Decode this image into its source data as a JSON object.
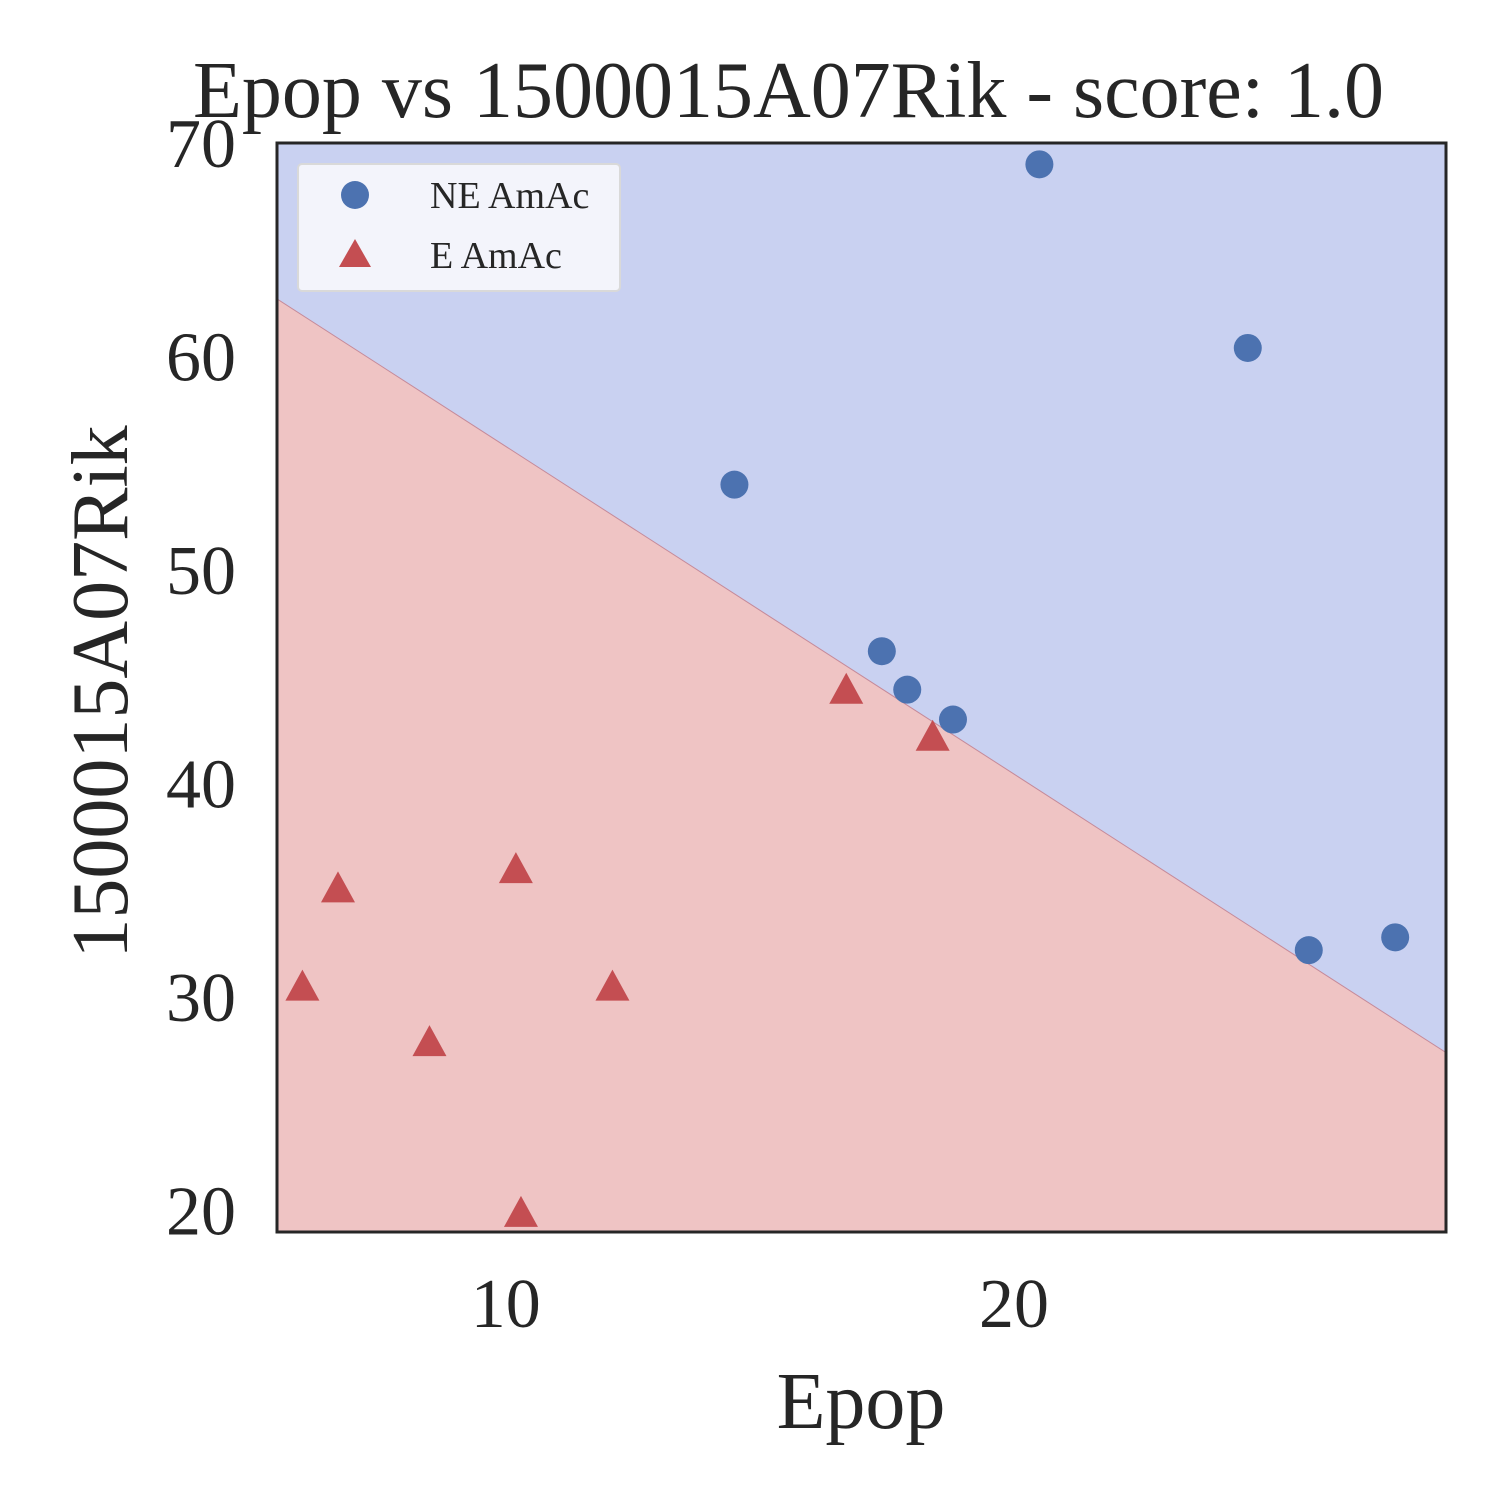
{
  "chart_data": {
    "type": "scatter",
    "title": "Epop vs 1500015A07Rik - score: 1.0",
    "xlabel": "Epop",
    "ylabel": "1500015A07Rik",
    "xlim": [
      5.5,
      28.5
    ],
    "ylim": [
      19,
      70
    ],
    "xticks": [
      10,
      20
    ],
    "yticks": [
      20,
      30,
      40,
      50,
      60,
      70
    ],
    "grid": false,
    "legend_position": "top-left",
    "decision_boundary": {
      "line": [
        [
          5.5,
          62.7
        ],
        [
          28.5,
          27.4
        ]
      ],
      "above_color": "#c9d1f1",
      "below_color": "#efc4c4",
      "line_color": "#c58a9a"
    },
    "series": [
      {
        "name": "NE AmAc",
        "marker": "circle",
        "color": "#4c72b0",
        "points": [
          [
            20.5,
            69.0
          ],
          [
            24.6,
            60.4
          ],
          [
            14.5,
            54.0
          ],
          [
            17.4,
            46.2
          ],
          [
            17.9,
            44.4
          ],
          [
            18.8,
            43.0
          ],
          [
            25.8,
            32.2
          ],
          [
            27.5,
            32.8
          ]
        ]
      },
      {
        "name": "E AmAc",
        "marker": "triangle",
        "color": "#c44e52",
        "points": [
          [
            16.7,
            44.3
          ],
          [
            18.4,
            42.1
          ],
          [
            6.7,
            35.0
          ],
          [
            6.0,
            30.4
          ],
          [
            8.5,
            27.8
          ],
          [
            10.2,
            35.9
          ],
          [
            12.1,
            30.4
          ],
          [
            10.3,
            19.8
          ]
        ]
      }
    ]
  }
}
